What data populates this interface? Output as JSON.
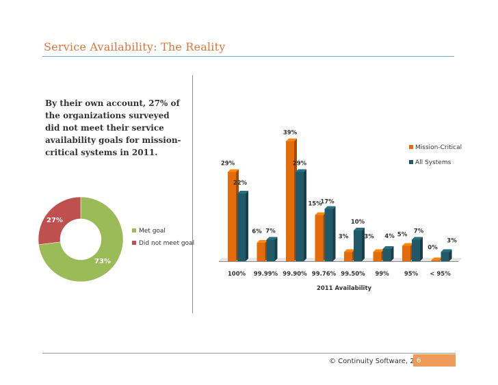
{
  "slide": {
    "title": "Service Availability: The Reality",
    "intro": "By their own account, 27% of the organizations surveyed did not meet their service availability goals for mission-critical systems in 2011.",
    "footer": "© Continuity Software, 2012",
    "page_number": "6"
  },
  "colors": {
    "title": "#d9743a",
    "met_goal": "#9bbb59",
    "did_not_meet": "#c0504d",
    "mission_critical": "#e46c0a",
    "all_systems": "#215968",
    "page_box": "#ef9b5a"
  },
  "chart_data": [
    {
      "type": "pie",
      "style": "donut",
      "slices": [
        {
          "name": "Met goal",
          "value": 73,
          "label": "73%"
        },
        {
          "name": "Did not meet goal",
          "value": 27,
          "label": "27%"
        }
      ],
      "legend": "right"
    },
    {
      "type": "bar",
      "style": "3d-clustered",
      "categories": [
        "100%",
        "99.99%",
        "99.90%",
        "99.76%",
        "99.50%",
        "99%",
        "95%",
        "< 95%"
      ],
      "series": [
        {
          "name": "Mission-Critical",
          "values": [
            29,
            6,
            39,
            15,
            3,
            3,
            5,
            0
          ],
          "labels": [
            "29%",
            "6%",
            "39%",
            "15%",
            "3%",
            "3%",
            "5%",
            "0%"
          ]
        },
        {
          "name": "All Systems",
          "values": [
            22,
            7,
            29,
            17,
            10,
            4,
            7,
            3
          ],
          "labels": [
            "22%",
            "7%",
            "29%",
            "17%",
            "10%",
            "4%",
            "7%",
            "3%"
          ]
        }
      ],
      "xlabel": "2011 Availability",
      "ylim": [
        0,
        40
      ],
      "grid": false,
      "legend": "top-right"
    }
  ]
}
